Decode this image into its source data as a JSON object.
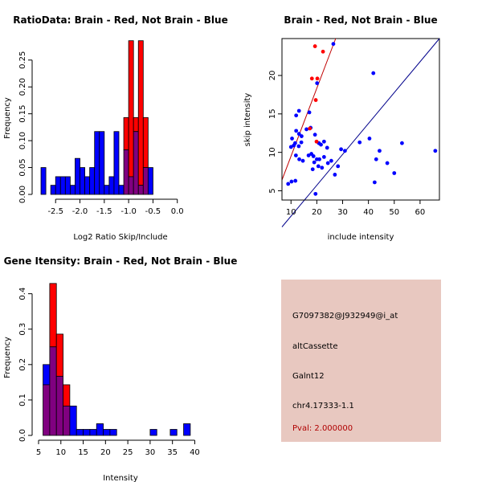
{
  "colors": {
    "red": "#ff0000",
    "blue": "#0000ff",
    "overlap": "#800080",
    "info_bg": "#e8c8c0",
    "pval": "#b00000",
    "redline": "#c00000",
    "blueline": "#00008b"
  },
  "chart_data": [
    {
      "type": "bar",
      "title": "RatioData: Brain - Red, Not Brain - Blue",
      "xlabel": "Log2 Ratio Skip/Include",
      "ylabel": "Frequency",
      "xlim": [
        -2.85,
        0.45
      ],
      "ylim": [
        0,
        0.29
      ],
      "xticks": [
        -2.5,
        -2.0,
        -1.5,
        -1.0,
        -0.5,
        0.0
      ],
      "xtick_labels": [
        "-2.5",
        "-2.0",
        "-1.5",
        "-1.0",
        "-0.5",
        "0.0"
      ],
      "yticks": [
        0,
        0.05,
        0.1,
        0.15,
        0.2,
        0.25
      ],
      "ytick_labels": [
        "0.00",
        "0.05",
        "0.10",
        "0.15",
        "0.20",
        "0.25"
      ],
      "bin_start": -2.8,
      "bin_width": 0.1,
      "series": [
        {
          "name": "Not Brain",
          "color": "blue",
          "values": [
            0.05,
            0,
            0.017,
            0.033,
            0.033,
            0.033,
            0.017,
            0.067,
            0.05,
            0.033,
            0.05,
            0.117,
            0.117,
            0.017,
            0.033,
            0.117,
            0.017,
            0.083,
            0.033,
            0.117,
            0.017,
            0.05,
            0.05
          ]
        },
        {
          "name": "Brain",
          "color": "red",
          "values": [
            0,
            0,
            0,
            0,
            0,
            0,
            0,
            0,
            0,
            0,
            0,
            0,
            0,
            0,
            0,
            0,
            0,
            0.143,
            0.286,
            0.143,
            0.286,
            0.143,
            0
          ]
        }
      ]
    },
    {
      "type": "scatter",
      "title": "Brain - Red, Not Brain - Blue",
      "xlabel": "include intensity",
      "ylabel": "skip intensity",
      "xlim": [
        6.5,
        67.5
      ],
      "ylim": [
        3.8,
        24.8
      ],
      "xticks": [
        10,
        20,
        30,
        40,
        50,
        60
      ],
      "xtick_labels": [
        "10",
        "20",
        "30",
        "40",
        "50",
        "60"
      ],
      "yticks": [
        5,
        10,
        15,
        20
      ],
      "ytick_labels": [
        "5",
        "10",
        "15",
        "20"
      ],
      "series": [
        {
          "name": "Brain",
          "color": "red",
          "points": [
            [
              19.3,
              23.8
            ],
            [
              22.4,
              23.1
            ],
            [
              18.1,
              19.6
            ],
            [
              20.2,
              19.6
            ],
            [
              17.3,
              13.1
            ],
            [
              19.6,
              16.8
            ],
            [
              19.9,
              11.4
            ]
          ]
        },
        {
          "name": "Not Brain",
          "color": "blue",
          "points": [
            [
              26.4,
              24.1
            ],
            [
              41.9,
              20.3
            ],
            [
              20.1,
              19.0
            ],
            [
              13.1,
              15.4
            ],
            [
              12.0,
              14.8
            ],
            [
              17.1,
              15.2
            ],
            [
              10.4,
              11.8
            ],
            [
              11.6,
              11.2
            ],
            [
              12.0,
              12.8
            ],
            [
              13.1,
              12.4
            ],
            [
              14.1,
              12.1
            ],
            [
              16.0,
              13.0
            ],
            [
              17.6,
              13.2
            ],
            [
              19.3,
              12.3
            ],
            [
              10.0,
              10.7
            ],
            [
              11.1,
              10.9
            ],
            [
              13.0,
              10.8
            ],
            [
              14.0,
              11.3
            ],
            [
              11.9,
              9.6
            ],
            [
              13.2,
              9.1
            ],
            [
              14.6,
              8.9
            ],
            [
              16.8,
              9.6
            ],
            [
              17.9,
              9.8
            ],
            [
              18.7,
              9.5
            ],
            [
              20.0,
              9.1
            ],
            [
              19.0,
              8.7
            ],
            [
              18.4,
              7.8
            ],
            [
              20.8,
              11.2
            ],
            [
              21.6,
              11.0
            ],
            [
              22.8,
              11.4
            ],
            [
              24.0,
              10.6
            ],
            [
              21.0,
              9.1
            ],
            [
              22.8,
              9.4
            ],
            [
              24.3,
              8.6
            ],
            [
              25.6,
              8.9
            ],
            [
              20.6,
              8.2
            ],
            [
              22.0,
              8.0
            ],
            [
              27.0,
              7.1
            ],
            [
              28.2,
              8.2
            ],
            [
              29.4,
              10.4
            ],
            [
              30.9,
              10.2
            ],
            [
              36.6,
              11.3
            ],
            [
              40.4,
              11.8
            ],
            [
              44.3,
              10.2
            ],
            [
              43.0,
              9.1
            ],
            [
              47.3,
              8.6
            ],
            [
              53.0,
              11.2
            ],
            [
              50.0,
              7.3
            ],
            [
              65.9,
              10.2
            ],
            [
              42.4,
              6.1
            ],
            [
              11.7,
              6.3
            ],
            [
              10.2,
              6.2
            ],
            [
              8.9,
              5.9
            ],
            [
              19.5,
              4.6
            ]
          ]
        }
      ],
      "fit_lines": [
        {
          "name": "Brain fit",
          "color": "redline",
          "from": [
            6.5,
            6.4
          ],
          "to": [
            27.3,
            24.8
          ]
        },
        {
          "name": "Not Brain fit",
          "color": "blueline",
          "from": [
            6.5,
            0.3
          ],
          "to": [
            67.5,
            24.8
          ]
        }
      ]
    },
    {
      "type": "bar",
      "title": "Gene Itensity: Brain - Red, Not Brain - Blue",
      "xlabel": "Intensity",
      "ylabel": "Frequency",
      "xlim": [
        5,
        41
      ],
      "ylim": [
        0,
        0.44
      ],
      "xticks": [
        5,
        10,
        15,
        20,
        25,
        30,
        35,
        40
      ],
      "xtick_labels": [
        "5",
        "10",
        "15",
        "20",
        "25",
        "30",
        "35",
        "40"
      ],
      "yticks": [
        0,
        0.1,
        0.2,
        0.3,
        0.4
      ],
      "ytick_labels": [
        "0.0",
        "0.1",
        "0.2",
        "0.3",
        "0.4"
      ],
      "bin_start": 6,
      "bin_width": 1.5,
      "series": [
        {
          "name": "Not Brain",
          "color": "blue",
          "values": [
            0.2,
            0.25,
            0.167,
            0.083,
            0.083,
            0.017,
            0.017,
            0.017,
            0.033,
            0.017,
            0.017,
            0,
            0,
            0,
            0,
            0,
            0.017,
            0,
            0,
            0.017,
            0,
            0.033
          ]
        },
        {
          "name": "Brain",
          "color": "red",
          "values": [
            0.143,
            0.429,
            0.286,
            0.143,
            0,
            0,
            0,
            0,
            0,
            0,
            0,
            0,
            0,
            0,
            0,
            0,
            0,
            0,
            0,
            0,
            0,
            0
          ]
        }
      ]
    }
  ],
  "info": {
    "probe": "G7097382@J932949@i_at",
    "event_type": "altCassette",
    "gene": "Galnt12",
    "location": "chr4.17333-1.1",
    "pval": "Pval: 2.000000"
  }
}
